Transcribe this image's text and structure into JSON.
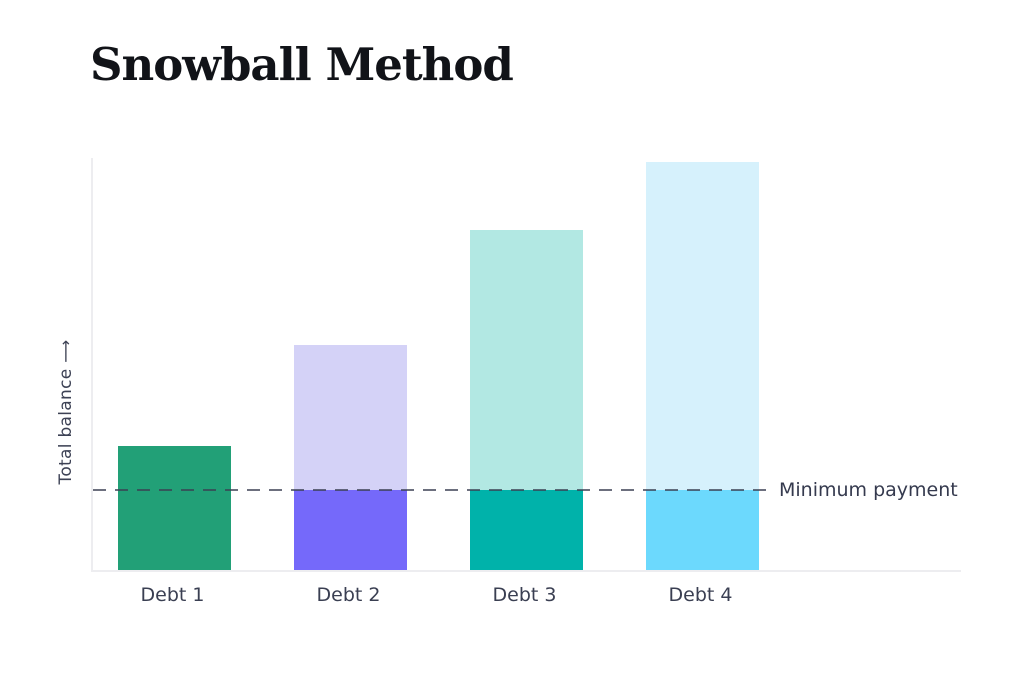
{
  "page": {
    "background": "#ffffff"
  },
  "colors": {
    "title_text": "#111318",
    "axis_line": "#ededf0",
    "tick_label_text": "#3a3f52",
    "annotation_text": "#353a4e",
    "dashed_line": "rgba(58,63,82,0.75)"
  },
  "chart_data": {
    "type": "bar",
    "title": "Snowball Method",
    "xlabel": "",
    "ylabel": "Total balance",
    "ylabel_arrow": "⟶",
    "ylim": [
      0,
      100
    ],
    "grid": false,
    "legend": "none",
    "categories": [
      "Debt 1",
      "Debt 2",
      "Debt 3",
      "Debt 4"
    ],
    "values": [
      30,
      54.5,
      82.5,
      99
    ],
    "annotation_line": {
      "label": "Minimum payment",
      "value": 19.5,
      "style": "dashed"
    },
    "bars": [
      {
        "category": "Debt 1",
        "value": 30,
        "color_below_line": "#22a077",
        "color_above_line": "#22a077"
      },
      {
        "category": "Debt 2",
        "value": 54.5,
        "color_below_line": "#7569fa",
        "color_above_line": "#d4d2f7"
      },
      {
        "category": "Debt 3",
        "value": 82.5,
        "color_below_line": "#00b2aa",
        "color_above_line": "#b2e8e3"
      },
      {
        "category": "Debt 4",
        "value": 99,
        "color_below_line": "#6cd9fd",
        "color_above_line": "#d6f1fc"
      }
    ]
  }
}
